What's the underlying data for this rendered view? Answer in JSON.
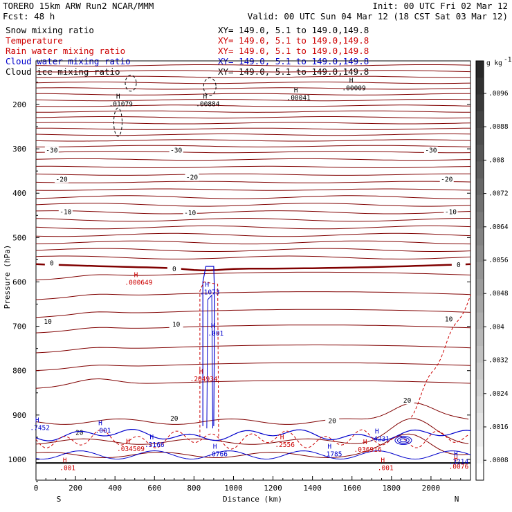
{
  "header": {
    "model": "TORERO  15km ARW   Run2     NCAR/MMM",
    "init": "Init: 00 UTC Fri 02 Mar 12",
    "fcst_label": "Fcst:    48 h",
    "valid": "Valid: 00 UTC Sun 04 Mar 12 (18 CST Sat 03 Mar 12)"
  },
  "legend": [
    {
      "name": "Snow mixing ratio",
      "xy": "XY= 149.0,  5.1 to 149.0,149.8",
      "color": "#000000"
    },
    {
      "name": "Temperature",
      "xy": "XY= 149.0,  5.1 to 149.0,149.8",
      "color": "#cc0000"
    },
    {
      "name": "Rain water mixing ratio",
      "xy": "XY= 149.0,  5.1 to 149.0,149.8",
      "color": "#cc0000"
    },
    {
      "name": "Cloud water mixing ratio",
      "xy": "XY= 149.0,  5.1 to 149.0,149.8",
      "color": "#0000cc"
    },
    {
      "name": "Cloud ice mixing ratio",
      "xy": "XY= 149.0,  5.1 to 149.0,149.8",
      "color": "#000000"
    }
  ],
  "colorbar": {
    "unit": "g kg",
    "unit_exp": "-1",
    "ticks": [
      ".0096",
      ".0088",
      ".008",
      ".0072",
      ".0064",
      ".0056",
      ".0048",
      ".004",
      ".0032",
      ".0024",
      ".0016",
      ".0008"
    ]
  },
  "chart_data": {
    "type": "contour-cross-section",
    "xlabel": "Distance (km)",
    "ylabel": "Pressure (hPa)",
    "xlim": [
      0,
      2200
    ],
    "x_ticks": [
      0,
      200,
      400,
      600,
      800,
      1000,
      1200,
      1400,
      1600,
      1800,
      2000
    ],
    "y_ticks": [
      200,
      300,
      400,
      500,
      600,
      700,
      800,
      900,
      1000
    ],
    "ylim": [
      1050,
      100
    ],
    "left_end": "S",
    "right_end": "N",
    "isotherm_labels": [
      {
        "text": "-30",
        "x": 80,
        "p": 307
      },
      {
        "text": "-30",
        "x": 710,
        "p": 307
      },
      {
        "text": "-30",
        "x": 2000,
        "p": 307
      },
      {
        "text": "-20",
        "x": 130,
        "p": 372
      },
      {
        "text": "-20",
        "x": 790,
        "p": 368
      },
      {
        "text": "-20",
        "x": 2080,
        "p": 372
      },
      {
        "text": "-10",
        "x": 150,
        "p": 446
      },
      {
        "text": "-10",
        "x": 780,
        "p": 448
      },
      {
        "text": "-10",
        "x": 2100,
        "p": 446
      },
      {
        "text": "0",
        "x": 80,
        "p": 561
      },
      {
        "text": "0",
        "x": 700,
        "p": 574
      },
      {
        "text": "0",
        "x": 2140,
        "p": 565
      },
      {
        "text": "10",
        "x": 60,
        "p": 693
      },
      {
        "text": "10",
        "x": 710,
        "p": 699
      },
      {
        "text": "10",
        "x": 2090,
        "p": 687
      },
      {
        "text": "20",
        "x": 700,
        "p": 911
      },
      {
        "text": "20",
        "x": 220,
        "p": 943
      },
      {
        "text": "20",
        "x": 1500,
        "p": 917
      },
      {
        "text": "20",
        "x": 1880,
        "p": 871
      }
    ],
    "maxima_labels": [
      {
        "text": ".01079",
        "x": 430,
        "p": 204,
        "color": "#000000"
      },
      {
        "text": ".00884",
        "x": 870,
        "p": 204,
        "color": "#000000"
      },
      {
        "text": ".00041",
        "x": 1330,
        "p": 190,
        "color": "#000000"
      },
      {
        "text": ".00009",
        "x": 1610,
        "p": 168,
        "color": "#000000"
      },
      {
        "text": ".000649",
        "x": 520,
        "p": 606,
        "color": "#cc0000"
      },
      {
        "text": ".1073",
        "x": 880,
        "p": 628,
        "color": "#0000cc"
      },
      {
        "text": ".001",
        "x": 910,
        "p": 721,
        "color": "#0000cc"
      },
      {
        "text": ".204934",
        "x": 850,
        "p": 824,
        "color": "#cc0000"
      },
      {
        "text": ".001",
        "x": 340,
        "p": 940,
        "color": "#0000cc"
      },
      {
        "text": ".7452",
        "x": 20,
        "p": 934,
        "color": "#0000cc"
      },
      {
        "text": ".034509",
        "x": 480,
        "p": 981,
        "color": "#cc0000"
      },
      {
        "text": ".3166",
        "x": 600,
        "p": 972,
        "color": "#0000cc"
      },
      {
        "text": ".0766",
        "x": 920,
        "p": 993,
        "color": "#0000cc"
      },
      {
        "text": ".2556",
        "x": 1260,
        "p": 972,
        "color": "#cc0000"
      },
      {
        "text": ".1785",
        "x": 1500,
        "p": 993,
        "color": "#0000cc"
      },
      {
        "text": ".4231",
        "x": 1740,
        "p": 959,
        "color": "#0000cc"
      },
      {
        "text": ".036916",
        "x": 1680,
        "p": 983,
        "color": "#cc0000"
      },
      {
        "text": ".001",
        "x": 160,
        "p": 1024,
        "color": "#cc0000"
      },
      {
        "text": ".001",
        "x": 1770,
        "p": 1024,
        "color": "#cc0000"
      },
      {
        "text": ".3214",
        "x": 2140,
        "p": 1010,
        "color": "#0000cc"
      },
      {
        "text": ".0076",
        "x": 2140,
        "p": 1021,
        "color": "#cc0000"
      }
    ]
  }
}
